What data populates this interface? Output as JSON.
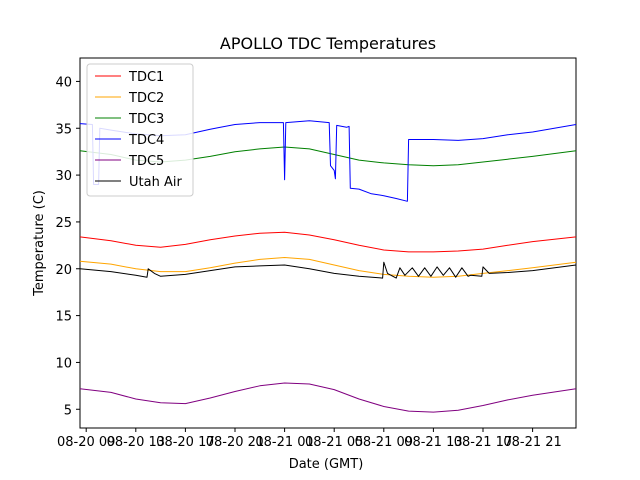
{
  "chart_data": {
    "type": "line",
    "title": "APOLLO TDC Temperatures",
    "xlabel": "Date (GMT)",
    "ylabel": "Temperature (C)",
    "xlim": [
      -0.5,
      39.5
    ],
    "ylim": [
      3.0,
      42.5
    ],
    "grid": false,
    "legend_position": "top-left",
    "x_ticks": [
      {
        "x": 0,
        "label": "08-20 09"
      },
      {
        "x": 4,
        "label": "08-20 13"
      },
      {
        "x": 8,
        "label": "08-20 17"
      },
      {
        "x": 12,
        "label": "08-20 21"
      },
      {
        "x": 16,
        "label": "08-21 01"
      },
      {
        "x": 20,
        "label": "08-21 05"
      },
      {
        "x": 24,
        "label": "08-21 09"
      },
      {
        "x": 28,
        "label": "08-21 13"
      },
      {
        "x": 32,
        "label": "08-21 17"
      },
      {
        "x": 36,
        "label": "08-21 21"
      }
    ],
    "y_ticks": [
      5,
      10,
      15,
      20,
      25,
      30,
      35,
      40
    ],
    "series": [
      {
        "name": "TDC1",
        "color": "#ff0000",
        "points": [
          [
            -0.5,
            23.4
          ],
          [
            2,
            23.0
          ],
          [
            4,
            22.5
          ],
          [
            6,
            22.3
          ],
          [
            8,
            22.6
          ],
          [
            10,
            23.1
          ],
          [
            12,
            23.5
          ],
          [
            14,
            23.8
          ],
          [
            16,
            23.9
          ],
          [
            18,
            23.6
          ],
          [
            20,
            23.1
          ],
          [
            22,
            22.5
          ],
          [
            24,
            22.0
          ],
          [
            26,
            21.8
          ],
          [
            28,
            21.8
          ],
          [
            30,
            21.9
          ],
          [
            32,
            22.1
          ],
          [
            34,
            22.5
          ],
          [
            36,
            22.9
          ],
          [
            39.5,
            23.4
          ]
        ]
      },
      {
        "name": "TDC2",
        "color": "#ffa500",
        "points": [
          [
            -0.5,
            20.8
          ],
          [
            2,
            20.5
          ],
          [
            4,
            20.0
          ],
          [
            6,
            19.7
          ],
          [
            8,
            19.7
          ],
          [
            10,
            20.1
          ],
          [
            12,
            20.6
          ],
          [
            14,
            21.0
          ],
          [
            16,
            21.2
          ],
          [
            18,
            21.0
          ],
          [
            20,
            20.4
          ],
          [
            22,
            19.8
          ],
          [
            24,
            19.4
          ],
          [
            26,
            19.2
          ],
          [
            28,
            19.1
          ],
          [
            30,
            19.2
          ],
          [
            32,
            19.5
          ],
          [
            34,
            19.8
          ],
          [
            36,
            20.1
          ],
          [
            39.5,
            20.7
          ]
        ]
      },
      {
        "name": "TDC3",
        "color": "#008000",
        "points": [
          [
            -0.5,
            32.6
          ],
          [
            2,
            32.2
          ],
          [
            4,
            31.6
          ],
          [
            6,
            31.4
          ],
          [
            8,
            31.6
          ],
          [
            10,
            32.0
          ],
          [
            12,
            32.5
          ],
          [
            14,
            32.8
          ],
          [
            16,
            33.0
          ],
          [
            18,
            32.8
          ],
          [
            20,
            32.2
          ],
          [
            22,
            31.6
          ],
          [
            24,
            31.3
          ],
          [
            26,
            31.1
          ],
          [
            28,
            31.0
          ],
          [
            30,
            31.1
          ],
          [
            32,
            31.4
          ],
          [
            34,
            31.7
          ],
          [
            36,
            32.0
          ],
          [
            39.5,
            32.6
          ]
        ]
      },
      {
        "name": "TDC4",
        "color": "#0000ff",
        "points": [
          [
            -0.5,
            35.5
          ],
          [
            0.5,
            35.4
          ],
          [
            0.6,
            29.0
          ],
          [
            1.0,
            29.0
          ],
          [
            1.1,
            35.0
          ],
          [
            2,
            34.8
          ],
          [
            4,
            34.4
          ],
          [
            6,
            34.2
          ],
          [
            8,
            34.3
          ],
          [
            10,
            34.9
          ],
          [
            12,
            35.4
          ],
          [
            14,
            35.6
          ],
          [
            15.9,
            35.6
          ],
          [
            16.0,
            29.5
          ],
          [
            16.1,
            35.6
          ],
          [
            18,
            35.8
          ],
          [
            19.6,
            35.6
          ],
          [
            19.7,
            31.0
          ],
          [
            20.0,
            30.5
          ],
          [
            20.1,
            29.6
          ],
          [
            20.2,
            35.3
          ],
          [
            21.0,
            35.1
          ],
          [
            21.2,
            35.2
          ],
          [
            21.3,
            28.6
          ],
          [
            22,
            28.5
          ],
          [
            23,
            28.0
          ],
          [
            24,
            27.8
          ],
          [
            25,
            27.5
          ],
          [
            25.9,
            27.2
          ],
          [
            26.0,
            33.8
          ],
          [
            28,
            33.8
          ],
          [
            30,
            33.7
          ],
          [
            32,
            33.9
          ],
          [
            34,
            34.3
          ],
          [
            36,
            34.6
          ],
          [
            39.5,
            35.4
          ]
        ]
      },
      {
        "name": "TDC5",
        "color": "#800080",
        "points": [
          [
            -0.5,
            7.2
          ],
          [
            2,
            6.8
          ],
          [
            4,
            6.1
          ],
          [
            6,
            5.7
          ],
          [
            8,
            5.6
          ],
          [
            10,
            6.2
          ],
          [
            12,
            6.9
          ],
          [
            14,
            7.5
          ],
          [
            16,
            7.8
          ],
          [
            18,
            7.7
          ],
          [
            20,
            7.1
          ],
          [
            22,
            6.1
          ],
          [
            24,
            5.3
          ],
          [
            26,
            4.8
          ],
          [
            28,
            4.7
          ],
          [
            30,
            4.9
          ],
          [
            32,
            5.4
          ],
          [
            34,
            6.0
          ],
          [
            36,
            6.5
          ],
          [
            39.5,
            7.2
          ]
        ]
      },
      {
        "name": "Utah Air",
        "color": "#000000",
        "points": [
          [
            -0.5,
            20.0
          ],
          [
            2,
            19.7
          ],
          [
            4,
            19.3
          ],
          [
            4.9,
            19.1
          ],
          [
            5.0,
            20.0
          ],
          [
            5.5,
            19.5
          ],
          [
            6,
            19.2
          ],
          [
            8,
            19.4
          ],
          [
            10,
            19.8
          ],
          [
            12,
            20.2
          ],
          [
            14,
            20.3
          ],
          [
            16,
            20.4
          ],
          [
            18,
            20.0
          ],
          [
            20,
            19.5
          ],
          [
            22,
            19.2
          ],
          [
            23.9,
            19.0
          ],
          [
            24.0,
            20.7
          ],
          [
            24.3,
            19.5
          ],
          [
            25,
            19.0
          ],
          [
            25.3,
            20.1
          ],
          [
            25.7,
            19.3
          ],
          [
            26.3,
            20.1
          ],
          [
            26.8,
            19.2
          ],
          [
            27.3,
            20.1
          ],
          [
            27.8,
            19.2
          ],
          [
            28.3,
            20.2
          ],
          [
            28.8,
            19.3
          ],
          [
            29.3,
            20.1
          ],
          [
            29.8,
            19.1
          ],
          [
            30.3,
            20.1
          ],
          [
            30.8,
            19.2
          ],
          [
            31,
            19.3
          ],
          [
            31.9,
            19.2
          ],
          [
            32.0,
            20.2
          ],
          [
            32.5,
            19.5
          ],
          [
            34,
            19.6
          ],
          [
            36,
            19.8
          ],
          [
            39.5,
            20.4
          ]
        ]
      }
    ]
  }
}
